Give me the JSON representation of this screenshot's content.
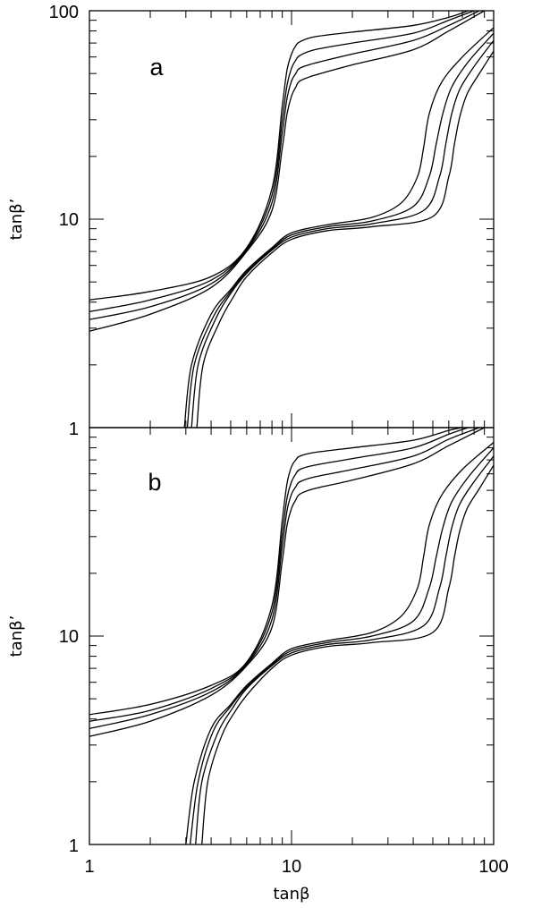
{
  "figure": {
    "xlabel": "tanβ",
    "x_tick_labels": [
      "1",
      "10",
      "100"
    ],
    "panels": [
      {
        "id": "a",
        "label": "a",
        "ylabel": "tanβ’",
        "y_tick_labels": [
          "1",
          "10",
          "100"
        ]
      },
      {
        "id": "b",
        "label": "b",
        "ylabel": "tanβ’",
        "y_tick_labels": [
          "1",
          "10",
          "100"
        ]
      }
    ]
  },
  "chart_data": [
    {
      "type": "line",
      "panel": "a",
      "xlabel": "tanβ",
      "ylabel": "tanβ’",
      "xscale": "log",
      "yscale": "log",
      "xlim": [
        1,
        100
      ],
      "ylim": [
        1,
        100
      ],
      "x_ticks": [
        1,
        10,
        100
      ],
      "y_ticks": [
        1,
        10,
        100
      ],
      "grid": false,
      "series": [
        {
          "x": [
            1,
            2,
            4,
            6,
            8,
            9,
            9.5,
            10,
            10.5,
            11,
            13,
            20,
            40,
            60,
            75
          ],
          "y": [
            4.1,
            4.5,
            5.3,
            7.3,
            14,
            35,
            52,
            62,
            68,
            71,
            75,
            79,
            85,
            93,
            100
          ]
        },
        {
          "x": [
            1,
            2,
            4,
            6,
            8,
            9,
            9.5,
            10,
            10.5,
            11,
            13,
            20,
            40,
            60,
            80
          ],
          "y": [
            3.6,
            4.1,
            5.1,
            7.2,
            13,
            30,
            44,
            53,
            58,
            61,
            65,
            70,
            78,
            90,
            100
          ]
        },
        {
          "x": [
            1,
            2,
            4,
            6,
            8,
            9,
            9.5,
            10,
            10.5,
            11,
            13,
            20,
            40,
            60,
            85
          ],
          "y": [
            3.3,
            3.8,
            4.9,
            7.1,
            12,
            26,
            38,
            46,
            50,
            53,
            56,
            62,
            72,
            85,
            100
          ]
        },
        {
          "x": [
            1,
            2,
            4,
            6,
            8,
            9,
            9.5,
            10,
            10.5,
            11,
            13,
            20,
            40,
            60,
            90
          ],
          "y": [
            2.9,
            3.5,
            4.7,
            7.0,
            11,
            22,
            32,
            39,
            43,
            46,
            49,
            55,
            65,
            80,
            100
          ]
        },
        {
          "x": [
            2.95,
            3.2,
            4,
            5,
            6,
            8,
            10,
            15,
            25,
            35,
            42,
            45,
            48,
            55,
            70,
            100
          ],
          "y": [
            1,
            2,
            3.5,
            4.6,
            5.7,
            7.3,
            8.6,
            9.4,
            10.2,
            12,
            16,
            22,
            32,
            45,
            60,
            83
          ]
        },
        {
          "x": [
            3.05,
            3.3,
            4.1,
            5,
            6,
            8,
            10,
            15,
            25,
            40,
            48,
            52,
            56,
            62,
            75,
            100
          ],
          "y": [
            1,
            2,
            3.4,
            4.5,
            5.6,
            7.2,
            8.4,
            9.2,
            9.8,
            11.5,
            16,
            23,
            32,
            43,
            57,
            78
          ]
        },
        {
          "x": [
            3.2,
            3.45,
            4.2,
            5,
            6,
            8,
            10,
            15,
            25,
            45,
            54,
            58,
            62,
            68,
            80,
            100
          ],
          "y": [
            1,
            2,
            3.3,
            4.4,
            5.5,
            7.1,
            8.2,
            9.0,
            9.5,
            11,
            16,
            23,
            32,
            42,
            54,
            72
          ]
        },
        {
          "x": [
            3.4,
            3.65,
            4.4,
            5.2,
            6,
            8,
            10,
            15,
            25,
            50,
            60,
            64,
            68,
            74,
            85,
            100
          ],
          "y": [
            1,
            2,
            3.2,
            4.3,
            5.3,
            6.9,
            8.0,
            8.8,
            9.2,
            10.3,
            16,
            23,
            31,
            40,
            50,
            64
          ]
        }
      ]
    },
    {
      "type": "line",
      "panel": "b",
      "xlabel": "tanβ",
      "ylabel": "tanβ’",
      "xscale": "log",
      "yscale": "log",
      "xlim": [
        1,
        100
      ],
      "ylim": [
        1,
        100
      ],
      "x_ticks": [
        1,
        10,
        100
      ],
      "y_ticks": [
        1,
        10,
        100
      ],
      "grid": false,
      "series": [
        {
          "x": [
            1,
            2,
            4,
            6,
            8,
            9,
            9.5,
            10,
            10.5,
            11,
            13,
            20,
            40,
            60,
            70
          ],
          "y": [
            4.2,
            4.7,
            5.8,
            7.5,
            14,
            36,
            54,
            65,
            70,
            73,
            76,
            80,
            87,
            97,
            100
          ]
        },
        {
          "x": [
            1,
            2,
            4,
            6,
            8,
            9,
            9.5,
            10,
            10.5,
            11,
            13,
            20,
            40,
            60,
            75
          ],
          "y": [
            3.9,
            4.4,
            5.6,
            7.4,
            13,
            31,
            46,
            55,
            60,
            63,
            66,
            71,
            80,
            93,
            100
          ]
        },
        {
          "x": [
            1,
            2,
            4,
            6,
            8,
            9,
            9.5,
            10,
            10.5,
            11,
            13,
            20,
            40,
            60,
            85
          ],
          "y": [
            3.6,
            4.2,
            5.4,
            7.3,
            12,
            27,
            40,
            48,
            52,
            55,
            58,
            63,
            73,
            88,
            100
          ]
        },
        {
          "x": [
            1,
            2,
            4,
            6,
            8,
            9,
            9.5,
            10,
            10.5,
            11,
            13,
            20,
            40,
            60,
            90
          ],
          "y": [
            3.3,
            3.9,
            5.2,
            7.2,
            11,
            23,
            34,
            41,
            45,
            48,
            51,
            56,
            67,
            82,
            100
          ]
        },
        {
          "x": [
            3.0,
            3.3,
            4,
            5,
            6,
            8,
            10,
            15,
            25,
            35,
            42,
            45,
            48,
            55,
            70,
            100
          ],
          "y": [
            1,
            2,
            3.6,
            4.7,
            5.8,
            7.4,
            8.7,
            9.5,
            10.4,
            12.5,
            17,
            24,
            34,
            47,
            63,
            85
          ]
        },
        {
          "x": [
            3.15,
            3.45,
            4.1,
            5,
            6,
            8,
            10,
            15,
            25,
            40,
            48,
            52,
            56,
            62,
            75,
            100
          ],
          "y": [
            1,
            2,
            3.5,
            4.6,
            5.7,
            7.3,
            8.5,
            9.3,
            10.0,
            11.8,
            17,
            24,
            33,
            44,
            58,
            80
          ]
        },
        {
          "x": [
            3.35,
            3.6,
            4.3,
            5.1,
            6,
            8,
            10,
            15,
            25,
            45,
            54,
            58,
            62,
            68,
            80,
            100
          ],
          "y": [
            1,
            2,
            3.4,
            4.5,
            5.6,
            7.2,
            8.3,
            9.1,
            9.6,
            11.2,
            17,
            24,
            33,
            43,
            55,
            73
          ]
        },
        {
          "x": [
            3.6,
            3.85,
            4.5,
            5.3,
            6.2,
            8,
            10,
            15,
            25,
            50,
            60,
            64,
            68,
            74,
            85,
            100
          ],
          "y": [
            1,
            2,
            3.3,
            4.4,
            5.4,
            7.0,
            8.1,
            8.9,
            9.3,
            10.4,
            17,
            24,
            32,
            41,
            51,
            66
          ]
        }
      ]
    }
  ]
}
